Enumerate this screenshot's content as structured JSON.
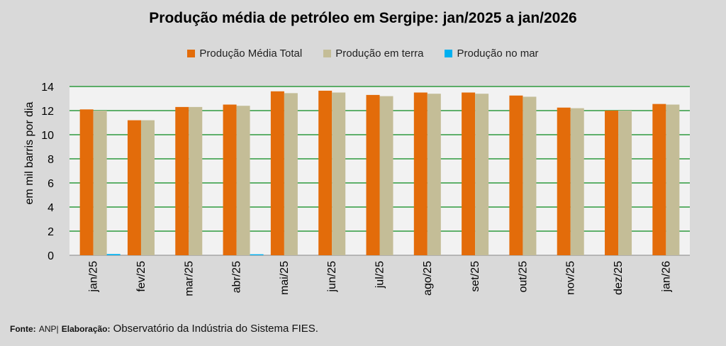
{
  "chart_data": {
    "type": "bar",
    "title": "Produção média de petróleo em Sergipe: jan/2025 a jan/2026",
    "ylabel": "em mil barris por dia",
    "xlabel": "",
    "ylim": [
      0,
      14
    ],
    "yticks": [
      0,
      2,
      4,
      6,
      8,
      10,
      12,
      14
    ],
    "grid": true,
    "legend_position": "top",
    "categories": [
      "jan/25",
      "fev/25",
      "mar/25",
      "abr/25",
      "mai/25",
      "jun/25",
      "jul/25",
      "ago/25",
      "set/25",
      "out/25",
      "nov/25",
      "dez/25",
      "jan/26"
    ],
    "series": [
      {
        "name": "Produção Média Total",
        "color": "#e36c0a",
        "values": [
          12.1,
          11.2,
          12.3,
          12.5,
          13.6,
          13.65,
          13.3,
          13.5,
          13.5,
          13.25,
          12.25,
          12.0,
          12.55
        ]
      },
      {
        "name": "Produção em terra",
        "color": "#c4bd97",
        "values": [
          12.0,
          11.2,
          12.3,
          12.4,
          13.45,
          13.5,
          13.2,
          13.4,
          13.4,
          13.15,
          12.2,
          12.0,
          12.5
        ]
      },
      {
        "name": "Produção no mar",
        "color": "#00b0f0",
        "values": [
          0.1,
          0,
          0,
          0.08,
          0,
          0,
          0,
          0,
          0,
          0,
          0,
          0,
          0
        ]
      }
    ]
  },
  "footer": {
    "fonte_label": "Fonte:",
    "fonte_value": "ANP|",
    "elaboracao_label": "Elaboração:",
    "elaboracao_value": "Observatório da Indústria do Sistema FIES."
  }
}
